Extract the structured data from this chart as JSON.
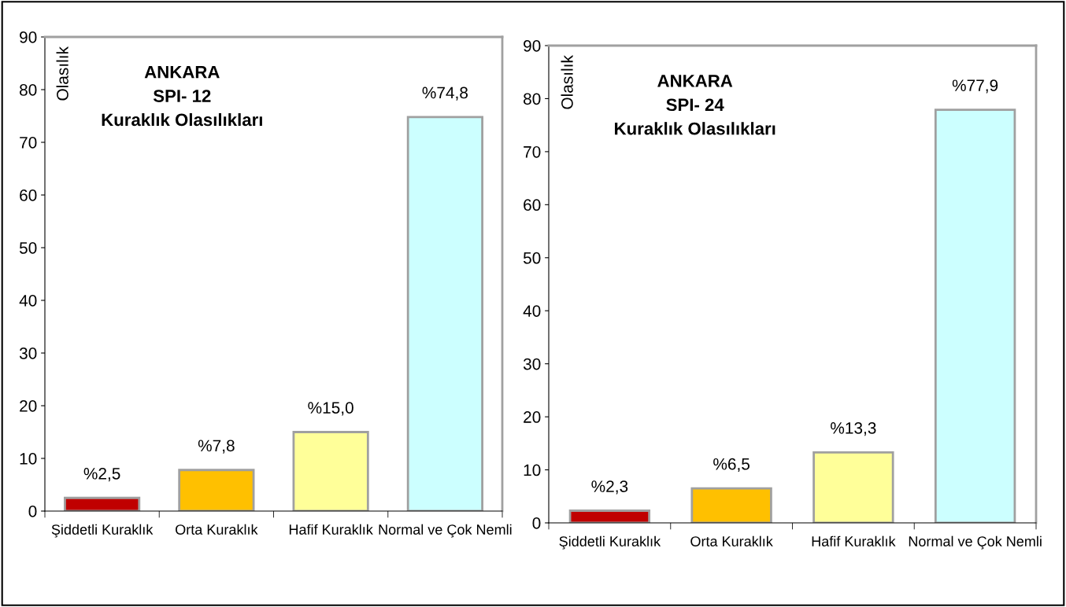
{
  "chart_data": [
    {
      "type": "bar",
      "title": "ANKARA\nSPI- 12\nKuraklık Olasılıkları",
      "ylabel": "Olasılık",
      "categories": [
        "Şiddetli Kuraklık",
        "Orta Kuraklık",
        "Hafif Kuraklık",
        "Normal ve Çok Nemli"
      ],
      "values": [
        2.5,
        7.8,
        15.0,
        74.8
      ],
      "colors": [
        "#c00000",
        "#ffc000",
        "#ffff99",
        "#ccffff"
      ],
      "value_labels": [
        "%2,5",
        "%7,8",
        "%15,0",
        "%74,8"
      ],
      "ylim": [
        0,
        90
      ],
      "yticks": [
        0,
        10,
        20,
        30,
        40,
        50,
        60,
        70,
        80,
        90
      ],
      "grid": false,
      "legend": false
    },
    {
      "type": "bar",
      "title": "ANKARA\nSPI- 24\nKuraklık Olasılıkları",
      "ylabel": "Olasılık",
      "categories": [
        "Şiddetli Kuraklık",
        "Orta Kuraklık",
        "Hafif Kuraklık",
        "Normal ve Çok Nemli"
      ],
      "values": [
        2.3,
        6.5,
        13.3,
        77.9
      ],
      "colors": [
        "#c00000",
        "#ffc000",
        "#ffff99",
        "#ccffff"
      ],
      "value_labels": [
        "%2,3",
        "%6,5",
        "%13,3",
        "%77,9"
      ],
      "ylim": [
        0,
        90
      ],
      "yticks": [
        0,
        10,
        20,
        30,
        40,
        50,
        60,
        70,
        80,
        90
      ],
      "grid": false,
      "legend": false
    }
  ]
}
